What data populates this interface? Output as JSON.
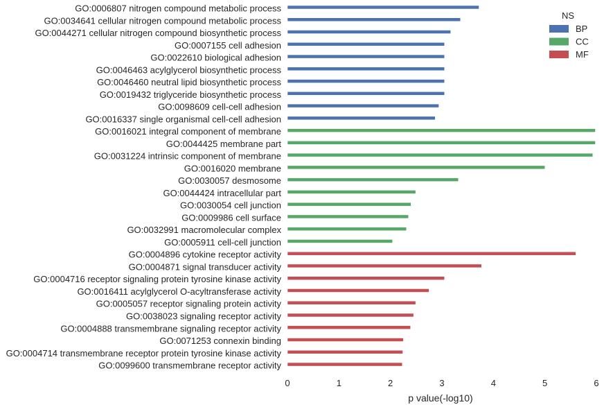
{
  "chart_data": {
    "type": "bar",
    "orientation": "horizontal",
    "xlabel": "p value(-log10)",
    "xlim": [
      0,
      6
    ],
    "xticks": [
      "0",
      "1",
      "2",
      "3",
      "4",
      "5",
      "6"
    ],
    "grid": false,
    "legend": {
      "title": "NS",
      "position": "top-right",
      "entries": [
        {
          "name": "BP",
          "color": "#4c72b0"
        },
        {
          "name": "CC",
          "color": "#55a868"
        },
        {
          "name": "MF",
          "color": "#c44e52"
        }
      ]
    },
    "bars": [
      {
        "label": "GO:0006807 nitrogen compound metabolic process",
        "value": 3.72,
        "group": "BP"
      },
      {
        "label": "GO:0034641 cellular nitrogen compound metabolic process",
        "value": 3.36,
        "group": "BP"
      },
      {
        "label": "GO:0044271 cellular nitrogen compound biosynthetic process",
        "value": 3.17,
        "group": "BP"
      },
      {
        "label": "GO:0007155 cell adhesion",
        "value": 3.05,
        "group": "BP"
      },
      {
        "label": "GO:0022610 biological adhesion",
        "value": 3.05,
        "group": "BP"
      },
      {
        "label": "GO:0046463 acylglycerol biosynthetic process",
        "value": 3.05,
        "group": "BP"
      },
      {
        "label": "GO:0046460 neutral lipid biosynthetic process",
        "value": 3.05,
        "group": "BP"
      },
      {
        "label": "GO:0019432 triglyceride biosynthetic process",
        "value": 3.05,
        "group": "BP"
      },
      {
        "label": "GO:0098609 cell-cell adhesion",
        "value": 2.94,
        "group": "BP"
      },
      {
        "label": "GO:0016337 single organismal cell-cell adhesion",
        "value": 2.87,
        "group": "BP"
      },
      {
        "label": "GO:0016021 integral component of membrane",
        "value": 5.98,
        "group": "CC"
      },
      {
        "label": "GO:0044425 membrane part",
        "value": 5.98,
        "group": "CC"
      },
      {
        "label": "GO:0031224 intrinsic component of membrane",
        "value": 5.93,
        "group": "CC"
      },
      {
        "label": "GO:0016020 membrane",
        "value": 5.0,
        "group": "CC"
      },
      {
        "label": "GO:0030057 desmosome",
        "value": 3.32,
        "group": "CC"
      },
      {
        "label": "GO:0044424 intracellular part",
        "value": 2.49,
        "group": "CC"
      },
      {
        "label": "GO:0030054 cell junction",
        "value": 2.4,
        "group": "CC"
      },
      {
        "label": "GO:0009986 cell surface",
        "value": 2.35,
        "group": "CC"
      },
      {
        "label": "GO:0032991 macromolecular complex",
        "value": 2.31,
        "group": "CC"
      },
      {
        "label": "GO:0005911 cell-cell junction",
        "value": 2.04,
        "group": "CC"
      },
      {
        "label": "GO:0004896 cytokine receptor activity",
        "value": 5.6,
        "group": "MF"
      },
      {
        "label": "GO:0004871 signal transducer activity",
        "value": 3.77,
        "group": "MF"
      },
      {
        "label": "GO:0004716 receptor signaling protein tyrosine kinase activity",
        "value": 3.05,
        "group": "MF"
      },
      {
        "label": "GO:0016411 acylglycerol O-acyltransferase activity",
        "value": 2.75,
        "group": "MF"
      },
      {
        "label": "GO:0005057 receptor signaling protein activity",
        "value": 2.49,
        "group": "MF"
      },
      {
        "label": "GO:0038023 signaling receptor activity",
        "value": 2.45,
        "group": "MF"
      },
      {
        "label": "GO:0004888 transmembrane signaling receptor activity",
        "value": 2.39,
        "group": "MF"
      },
      {
        "label": "GO:0071253 connexin binding",
        "value": 2.25,
        "group": "MF"
      },
      {
        "label": "GO:0004714 transmembrane receptor protein tyrosine kinase activity",
        "value": 2.24,
        "group": "MF"
      },
      {
        "label": "GO:0099600 transmembrane receptor activity",
        "value": 2.23,
        "group": "MF"
      }
    ]
  }
}
